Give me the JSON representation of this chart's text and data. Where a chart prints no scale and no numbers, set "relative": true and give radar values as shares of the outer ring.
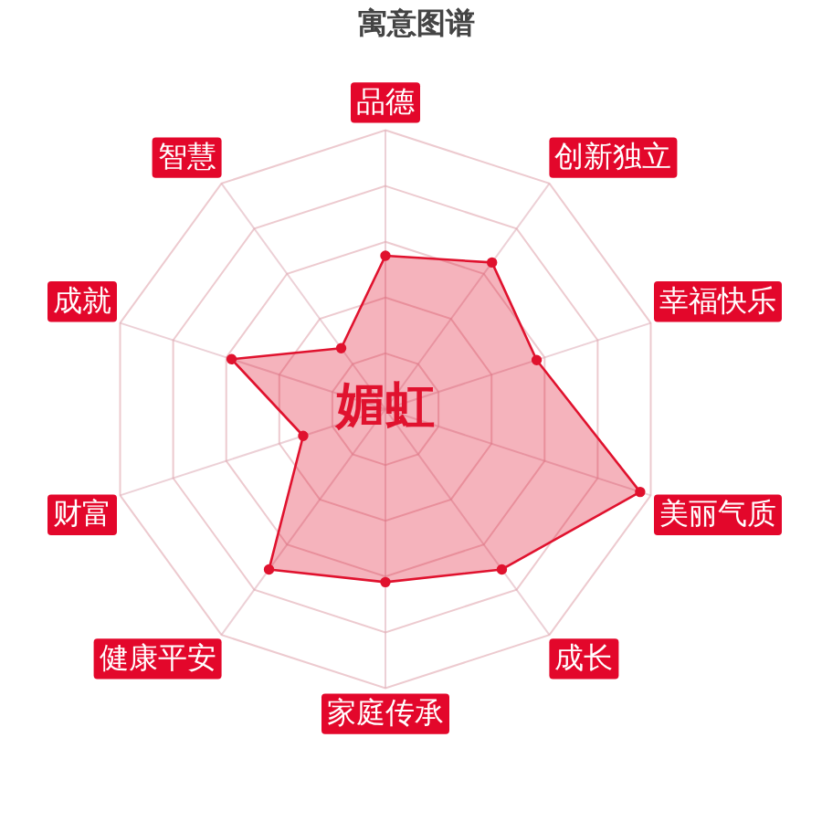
{
  "chart_data": {
    "type": "radar",
    "title": "寓意图谱",
    "annotations": [
      "媚虹"
    ],
    "categories": [
      "品德",
      "创新独立",
      "幸福快乐",
      "美丽气质",
      "成长",
      "家庭传承",
      "健康平安",
      "财富",
      "成就",
      "智慧"
    ],
    "relative": true,
    "series": [
      {
        "color": "#e0122e",
        "values": [
          0.55,
          0.65,
          0.57,
          0.96,
          0.71,
          0.62,
          0.71,
          0.31,
          0.58,
          0.27
        ]
      }
    ],
    "grid": true,
    "legend": false,
    "marker": "circle",
    "line_style": "solid"
  }
}
